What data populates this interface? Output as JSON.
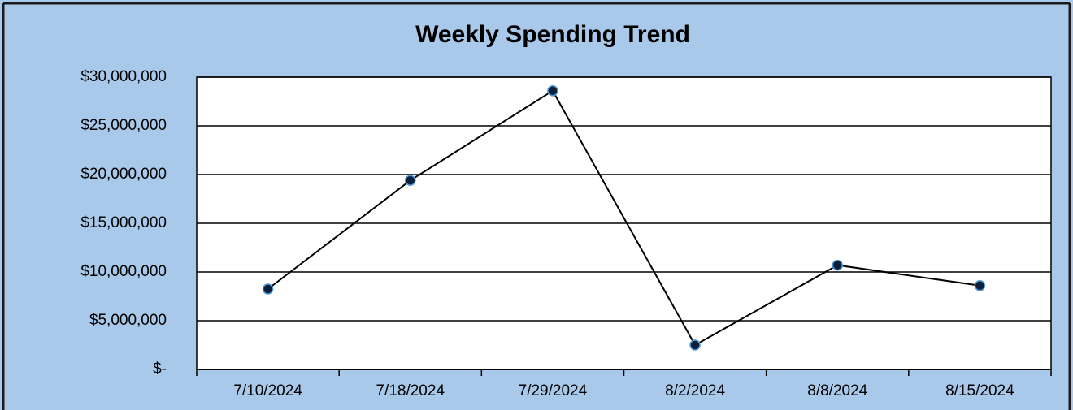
{
  "chart_data": {
    "type": "line",
    "title": "Weekly Spending Trend",
    "categories": [
      "7/10/2024",
      "7/18/2024",
      "7/29/2024",
      "8/2/2024",
      "8/8/2024",
      "8/15/2024"
    ],
    "values": [
      8250000,
      19400000,
      28600000,
      2500000,
      10700000,
      8600000
    ],
    "color": "#000000",
    "marker_color": "#0b1f3a",
    "ylim": [
      0,
      30000000
    ],
    "yticks": [
      {
        "value": 0,
        "label": "$-"
      },
      {
        "value": 5000000,
        "label": "$5,000,000"
      },
      {
        "value": 10000000,
        "label": "$10,000,000"
      },
      {
        "value": 15000000,
        "label": "$15,000,000"
      },
      {
        "value": 20000000,
        "label": "$20,000,000"
      },
      {
        "value": 25000000,
        "label": "$25,000,000"
      },
      {
        "value": 30000000,
        "label": "$30,000,000"
      }
    ],
    "grid": true
  }
}
